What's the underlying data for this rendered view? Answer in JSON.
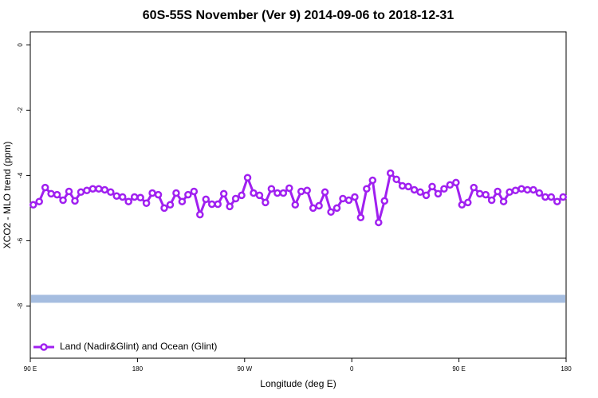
{
  "chart_data": {
    "type": "line",
    "title": "60S-55S November (Ver 9)   2014-09-06 to 2018-12-31",
    "x_label": "Longitude (deg E)",
    "y_label": "XCO2 - MLO trend (ppm)",
    "xlim": [
      90,
      540
    ],
    "xticks": [
      {
        "value": 90,
        "label": "90 E"
      },
      180,
      {
        "value": 270,
        "label": "90 W"
      },
      {
        "value": 360,
        "label": "0"
      },
      {
        "value": 450,
        "label": "90 E"
      },
      {
        "value": 540,
        "label": "180"
      }
    ],
    "ylim": [
      -9.6,
      0.4
    ],
    "yticks": [
      0,
      -2,
      -4,
      -6,
      -8
    ],
    "legend": "bottom-left",
    "reference_band": {
      "value": -7.78,
      "color": "#a5bde0"
    },
    "x": [
      92.5,
      97.5,
      102.5,
      107.5,
      112.5,
      117.5,
      122.5,
      127.5,
      132.5,
      137.5,
      142.5,
      147.5,
      152.5,
      157.5,
      162.5,
      167.5,
      172.5,
      177.5,
      182.5,
      187.5,
      192.5,
      197.5,
      202.5,
      207.5,
      212.5,
      217.5,
      222.5,
      227.5,
      232.5,
      237.5,
      242.5,
      247.5,
      252.5,
      257.5,
      262.5,
      267.5,
      272.5,
      277.5,
      282.5,
      287.5,
      292.5,
      297.5,
      302.5,
      307.5,
      312.5,
      317.5,
      322.5,
      327.5,
      332.5,
      337.5,
      342.5,
      347.5,
      352.5,
      357.5,
      362.5,
      367.5,
      372.5,
      377.5,
      382.5,
      387.5,
      392.5,
      397.5,
      402.5,
      407.5,
      412.5,
      417.5,
      422.5,
      427.5,
      432.5,
      437.5,
      442.5,
      447.5,
      452.5,
      457.5,
      462.5,
      467.5,
      472.5,
      477.5,
      482.5,
      487.5,
      492.5,
      497.5,
      502.5,
      507.5,
      512.5,
      517.5,
      522.5,
      527.5,
      532.5,
      537.5
    ],
    "series": [
      {
        "name": "Land (Nadir&Glint) and Ocean (Glint)",
        "color": "#a020f0",
        "values": [
          -4.9,
          -4.8,
          -4.37,
          -4.56,
          -4.59,
          -4.76,
          -4.49,
          -4.78,
          -4.51,
          -4.46,
          -4.41,
          -4.41,
          -4.44,
          -4.51,
          -4.63,
          -4.66,
          -4.8,
          -4.66,
          -4.68,
          -4.85,
          -4.54,
          -4.59,
          -5.0,
          -4.9,
          -4.54,
          -4.8,
          -4.59,
          -4.49,
          -5.2,
          -4.73,
          -4.88,
          -4.88,
          -4.56,
          -4.95,
          -4.71,
          -4.61,
          -4.07,
          -4.54,
          -4.61,
          -4.83,
          -4.41,
          -4.54,
          -4.54,
          -4.39,
          -4.9,
          -4.49,
          -4.46,
          -5.0,
          -4.93,
          -4.51,
          -5.12,
          -5.0,
          -4.71,
          -4.76,
          -4.66,
          -5.29,
          -4.41,
          -4.15,
          -5.44,
          -4.78,
          -3.93,
          -4.12,
          -4.32,
          -4.34,
          -4.44,
          -4.51,
          -4.61,
          -4.34,
          -4.56,
          -4.41,
          -4.29,
          -4.22,
          -4.9,
          -4.83,
          -4.37,
          -4.56,
          -4.59,
          -4.76,
          -4.49,
          -4.8,
          -4.51,
          -4.46,
          -4.41,
          -4.44,
          -4.44,
          -4.54,
          -4.66,
          -4.66,
          -4.8,
          -4.66
        ]
      }
    ]
  }
}
